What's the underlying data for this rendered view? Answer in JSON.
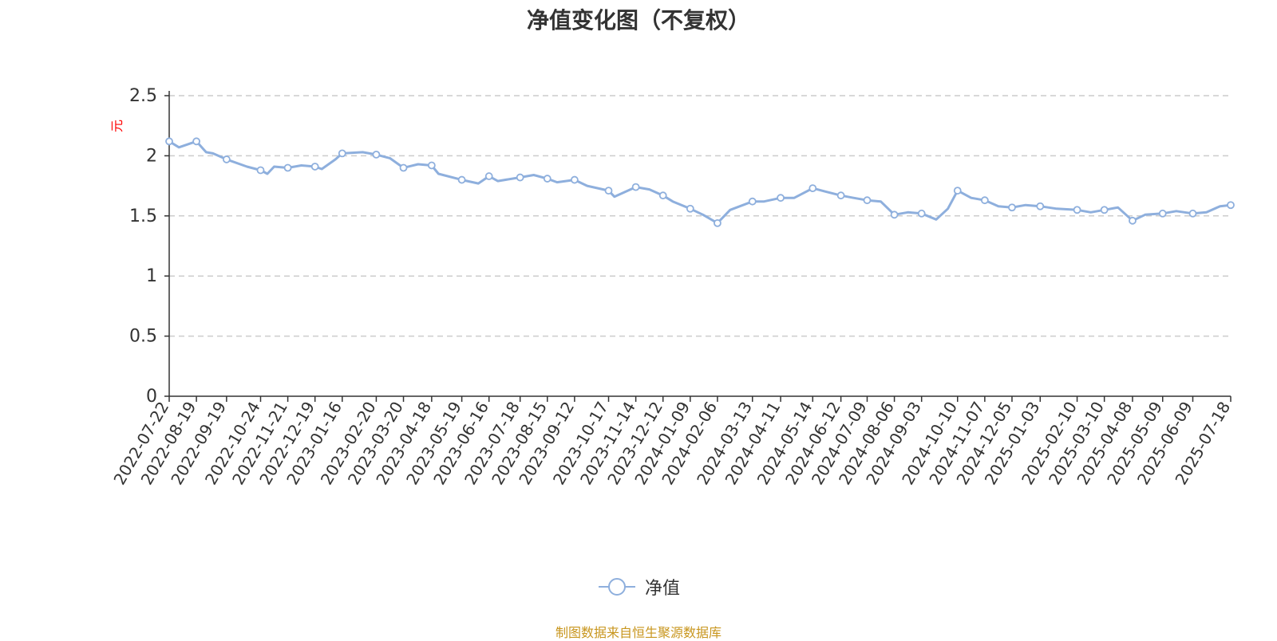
{
  "title": "净值变化图（不复权）",
  "source_note": "制图数据来自恒生聚源数据库",
  "colors": {
    "line": "#8eafdd",
    "grid": "#cccccc",
    "axis": "#333333",
    "unit": "#ff0000",
    "source": "#c8961e",
    "title": "#333333"
  },
  "chart_data": {
    "type": "line",
    "ylabel": "元",
    "ylim": [
      0,
      2.5
    ],
    "yticks": [
      "0",
      "0.5",
      "1",
      "1.5",
      "2",
      "2.5"
    ],
    "grid": "horizontal dashed",
    "legend_position": "bottom-center",
    "x_tick_labels": [
      "2022-07-22",
      "2022-08-19",
      "2022-09-19",
      "2022-10-24",
      "2022-11-21",
      "2022-12-19",
      "2023-01-16",
      "2023-02-20",
      "2023-03-20",
      "2023-04-18",
      "2023-05-19",
      "2023-06-16",
      "2023-07-18",
      "2023-08-15",
      "2023-09-12",
      "2023-10-17",
      "2023-11-14",
      "2023-12-12",
      "2024-01-09",
      "2024-02-06",
      "2024-03-13",
      "2024-04-11",
      "2024-05-14",
      "2024-06-12",
      "2024-07-09",
      "2024-08-06",
      "2024-09-03",
      "2024-10-10",
      "2024-11-07",
      "2024-12-05",
      "2025-01-03",
      "2025-02-10",
      "2025-03-10",
      "2025-04-08",
      "2025-05-09",
      "2025-06-09",
      "2025-07-18"
    ],
    "series": [
      {
        "name": "净值",
        "x": [
          "2022-07-22",
          "2022-08-01",
          "2022-08-19",
          "2022-08-29",
          "2022-09-05",
          "2022-09-19",
          "2022-10-10",
          "2022-10-24",
          "2022-10-31",
          "2022-11-07",
          "2022-11-21",
          "2022-12-05",
          "2022-12-19",
          "2022-12-26",
          "2023-01-09",
          "2023-01-16",
          "2023-02-06",
          "2023-02-20",
          "2023-03-06",
          "2023-03-20",
          "2023-04-04",
          "2023-04-18",
          "2023-04-25",
          "2023-05-19",
          "2023-06-05",
          "2023-06-16",
          "2023-06-25",
          "2023-07-18",
          "2023-08-01",
          "2023-08-15",
          "2023-08-25",
          "2023-09-12",
          "2023-09-25",
          "2023-10-17",
          "2023-10-23",
          "2023-11-14",
          "2023-11-28",
          "2023-12-12",
          "2023-12-22",
          "2024-01-09",
          "2024-01-22",
          "2024-02-06",
          "2024-02-19",
          "2024-03-13",
          "2024-03-25",
          "2024-04-11",
          "2024-04-25",
          "2024-05-14",
          "2024-05-28",
          "2024-06-12",
          "2024-06-25",
          "2024-07-09",
          "2024-07-23",
          "2024-08-06",
          "2024-08-20",
          "2024-09-03",
          "2024-09-18",
          "2024-09-30",
          "2024-10-10",
          "2024-10-24",
          "2024-11-07",
          "2024-11-21",
          "2024-12-05",
          "2024-12-19",
          "2025-01-03",
          "2025-01-20",
          "2025-02-10",
          "2025-02-24",
          "2025-03-10",
          "2025-03-24",
          "2025-04-08",
          "2025-04-21",
          "2025-05-09",
          "2025-05-23",
          "2025-06-09",
          "2025-06-23",
          "2025-07-07",
          "2025-07-18"
        ],
        "values": [
          2.12,
          2.07,
          2.12,
          2.03,
          2.02,
          1.97,
          1.91,
          1.88,
          1.85,
          1.91,
          1.9,
          1.92,
          1.91,
          1.89,
          1.97,
          2.02,
          2.03,
          2.01,
          1.98,
          1.9,
          1.93,
          1.92,
          1.85,
          1.8,
          1.77,
          1.83,
          1.79,
          1.82,
          1.84,
          1.81,
          1.78,
          1.8,
          1.75,
          1.71,
          1.66,
          1.74,
          1.72,
          1.67,
          1.62,
          1.56,
          1.51,
          1.44,
          1.55,
          1.62,
          1.62,
          1.65,
          1.65,
          1.73,
          1.7,
          1.67,
          1.65,
          1.63,
          1.62,
          1.51,
          1.53,
          1.52,
          1.47,
          1.56,
          1.71,
          1.65,
          1.63,
          1.58,
          1.57,
          1.59,
          1.58,
          1.56,
          1.55,
          1.53,
          1.55,
          1.57,
          1.46,
          1.51,
          1.52,
          1.54,
          1.52,
          1.53,
          1.58,
          1.59
        ]
      }
    ]
  }
}
